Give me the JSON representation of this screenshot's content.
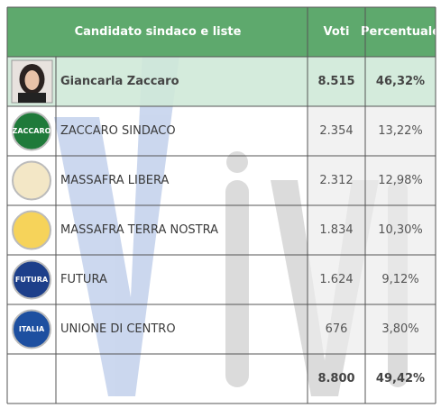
{
  "table": {
    "header": [
      "Candidato sindaco e liste",
      "Voti",
      "Percentuale"
    ],
    "candidate": {
      "name": "Giancarla Zaccaro",
      "votes": "8.515",
      "percent": "46,32%"
    },
    "lists": [
      {
        "name": "ZACCARO SINDACO",
        "votes": "2.354",
        "percent": "13,22%",
        "logo": "ZACCARO"
      },
      {
        "name": "MASSAFRA LIBERA",
        "votes": "2.312",
        "percent": "12,98%"
      },
      {
        "name": "MASSAFRA TERRA NOSTRA",
        "votes": "1.834",
        "percent": "10,30%"
      },
      {
        "name": "FUTURA",
        "votes": "1.624",
        "percent": "9,12%",
        "logo": "FUTURA"
      },
      {
        "name": "UNIONE DI CENTRO",
        "votes": "676",
        "percent": "3,80%",
        "logo": "ITALIA"
      }
    ],
    "total": {
      "votes": "8.800",
      "percent": "49,42%"
    }
  }
}
